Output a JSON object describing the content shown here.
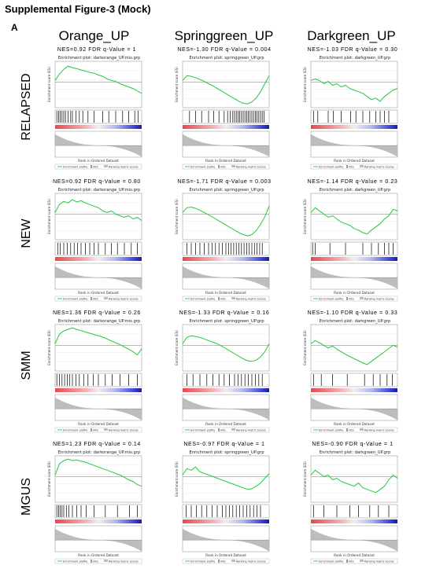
{
  "figure": {
    "title": "Supplemental Figure-3 (Mock)",
    "panel_label": "A",
    "columns": [
      "Orange_UP",
      "Springgreen_UP",
      "Darkgreen_UP"
    ],
    "rows": [
      "RELAPSED",
      "NEW",
      "SMM",
      "MGUS"
    ]
  },
  "chart_data": [
    {
      "type": "line",
      "row": "RELAPSED",
      "column": "Orange_UP",
      "stat": "NES=0.92  FDR q-Value = 1",
      "plot_title": "Enrichment plot: darkorange_UP.mis.grp",
      "xlabel": "Rank in Ordered Dataset",
      "ylabel": "Enrichment score (ES)",
      "legend": [
        "Enrichment profile",
        "Hits",
        "Ranking metric scores"
      ],
      "x": [
        0,
        0.05,
        0.1,
        0.15,
        0.2,
        0.25,
        0.3,
        0.35,
        0.4,
        0.45,
        0.5,
        0.55,
        0.6,
        0.65,
        0.7,
        0.75,
        0.8,
        0.85,
        0.9,
        0.95,
        1
      ],
      "es": [
        0.05,
        0.25,
        0.4,
        0.5,
        0.45,
        0.42,
        0.38,
        0.35,
        0.3,
        0.28,
        0.22,
        0.18,
        0.1,
        0.05,
        0.02,
        -0.05,
        -0.1,
        -0.15,
        -0.2,
        -0.28,
        -0.35
      ],
      "hits": [
        0.02,
        0.04,
        0.06,
        0.08,
        0.1,
        0.12,
        0.15,
        0.18,
        0.2,
        0.24,
        0.28,
        0.32,
        0.38,
        0.45,
        0.55,
        0.62,
        0.7,
        0.78,
        0.85,
        0.92,
        0.96
      ]
    },
    {
      "type": "line",
      "row": "RELAPSED",
      "column": "Springgreen_UP",
      "stat": "NES=-1.30  FDR q-Value = 0.004",
      "plot_title": "Enrichment plot: springgreen_UP.grp",
      "xlabel": "Rank in Ordered Dataset",
      "ylabel": "Enrichment score (ES)",
      "legend": [
        "Enrichment profile",
        "Hits",
        "Ranking metric scores"
      ],
      "x": [
        0,
        0.05,
        0.1,
        0.15,
        0.2,
        0.25,
        0.3,
        0.35,
        0.4,
        0.45,
        0.5,
        0.55,
        0.6,
        0.65,
        0.7,
        0.75,
        0.8,
        0.85,
        0.9,
        0.95,
        1
      ],
      "es": [
        0.05,
        0.2,
        0.18,
        0.14,
        0.08,
        0.02,
        -0.05,
        -0.12,
        -0.2,
        -0.28,
        -0.36,
        -0.44,
        -0.52,
        -0.6,
        -0.66,
        -0.68,
        -0.62,
        -0.5,
        -0.3,
        -0.05,
        0.2
      ],
      "hits": [
        0.08,
        0.15,
        0.22,
        0.3,
        0.36,
        0.42,
        0.48,
        0.52,
        0.55,
        0.58,
        0.6,
        0.62,
        0.64,
        0.66,
        0.68,
        0.7,
        0.72,
        0.74,
        0.76,
        0.78,
        0.8,
        0.82,
        0.84,
        0.86,
        0.88,
        0.9,
        0.92,
        0.94
      ]
    },
    {
      "type": "line",
      "row": "RELAPSED",
      "column": "Darkgreen_UP",
      "stat": "NES=-1.03  FDR q-Value = 0.30",
      "plot_title": "Enrichment plot: darkgreen_UP.grp",
      "xlabel": "Rank in Ordered Dataset",
      "ylabel": "Enrichment score (ES)",
      "legend": [
        "Enrichment profile",
        "Hits",
        "Ranking metric scores"
      ],
      "x": [
        0,
        0.05,
        0.1,
        0.15,
        0.2,
        0.25,
        0.3,
        0.35,
        0.4,
        0.45,
        0.5,
        0.55,
        0.6,
        0.65,
        0.7,
        0.75,
        0.8,
        0.85,
        0.9,
        0.95,
        1
      ],
      "es": [
        0.05,
        0.1,
        0.05,
        -0.05,
        0.02,
        -0.1,
        -0.05,
        -0.15,
        -0.1,
        -0.2,
        -0.25,
        -0.3,
        -0.35,
        -0.45,
        -0.55,
        -0.5,
        -0.6,
        -0.45,
        -0.35,
        -0.25,
        -0.2
      ],
      "hits": [
        0.03,
        0.08,
        0.2,
        0.26,
        0.35,
        0.46,
        0.52,
        0.6,
        0.68,
        0.75,
        0.8,
        0.85,
        0.9
      ]
    },
    {
      "type": "line",
      "row": "NEW",
      "column": "Orange_UP",
      "stat": "NES=0.92  FDR q-Value = 0.80",
      "plot_title": "Enrichment plot: darkorange_UP.mis.grp",
      "xlabel": "Rank in Ordered Dataset",
      "ylabel": "Enrichment score (ES)",
      "legend": [
        "Enrichment profile",
        "Hits",
        "Ranking metric scores"
      ],
      "x": [
        0,
        0.05,
        0.1,
        0.15,
        0.2,
        0.25,
        0.3,
        0.35,
        0.4,
        0.45,
        0.5,
        0.55,
        0.6,
        0.65,
        0.7,
        0.75,
        0.8,
        0.85,
        0.9,
        0.95,
        1
      ],
      "es": [
        0.05,
        0.3,
        0.4,
        0.35,
        0.45,
        0.38,
        0.42,
        0.35,
        0.3,
        0.25,
        0.2,
        0.1,
        0.05,
        0.1,
        0.0,
        -0.05,
        -0.1,
        -0.05,
        -0.15,
        -0.1,
        -0.2
      ],
      "hits": [
        0.03,
        0.06,
        0.1,
        0.14,
        0.18,
        0.22,
        0.26,
        0.3,
        0.35,
        0.4,
        0.45,
        0.5,
        0.58,
        0.65,
        0.72,
        0.8,
        0.88,
        0.95
      ]
    },
    {
      "type": "line",
      "row": "NEW",
      "column": "Springgreen_UP",
      "stat": "NES=-1.71  FDR q-Value = 0.003",
      "plot_title": "Enrichment plot: springgreen_UP.grp",
      "xlabel": "Rank in Ordered Dataset",
      "ylabel": "Enrichment score (ES)",
      "legend": [
        "Enrichment profile",
        "Hits",
        "Ranking metric scores"
      ],
      "x": [
        0,
        0.05,
        0.1,
        0.15,
        0.2,
        0.25,
        0.3,
        0.35,
        0.4,
        0.45,
        0.5,
        0.55,
        0.6,
        0.65,
        0.7,
        0.75,
        0.8,
        0.85,
        0.9,
        0.95,
        1
      ],
      "es": [
        0.05,
        0.2,
        0.22,
        0.18,
        0.12,
        0.05,
        -0.02,
        -0.1,
        -0.18,
        -0.26,
        -0.34,
        -0.42,
        -0.5,
        -0.58,
        -0.64,
        -0.68,
        -0.64,
        -0.52,
        -0.32,
        -0.08,
        0.25
      ],
      "hits": [
        0.05,
        0.1,
        0.15,
        0.2,
        0.25,
        0.3,
        0.34,
        0.38,
        0.42,
        0.46,
        0.5,
        0.53,
        0.56,
        0.59,
        0.62,
        0.65,
        0.68,
        0.71,
        0.74,
        0.77,
        0.8,
        0.83,
        0.86,
        0.89,
        0.92
      ]
    },
    {
      "type": "line",
      "row": "NEW",
      "column": "Darkgreen_UP",
      "stat": "NES=-1.14  FDR q-Value = 0.23",
      "plot_title": "Enrichment plot: darkgreen_UP.grp",
      "xlabel": "Rank in Ordered Dataset",
      "ylabel": "Enrichment score (ES)",
      "legend": [
        "Enrichment profile",
        "Hits",
        "Ranking metric scores"
      ],
      "x": [
        0,
        0.05,
        0.1,
        0.15,
        0.2,
        0.25,
        0.3,
        0.35,
        0.4,
        0.45,
        0.5,
        0.55,
        0.6,
        0.65,
        0.7,
        0.75,
        0.8,
        0.85,
        0.9,
        0.95,
        1
      ],
      "es": [
        0.05,
        0.2,
        0.1,
        0.0,
        -0.1,
        -0.05,
        -0.15,
        -0.25,
        -0.3,
        -0.35,
        -0.45,
        -0.5,
        -0.58,
        -0.62,
        -0.5,
        -0.4,
        -0.3,
        -0.15,
        -0.05,
        0.15,
        0.1
      ],
      "hits": [
        0.02,
        0.05,
        0.22,
        0.4,
        0.6,
        0.7,
        0.78,
        0.85,
        0.9,
        0.95
      ]
    },
    {
      "type": "line",
      "row": "SMM",
      "column": "Orange_UP",
      "stat": "NES=1.36  FDR q-Value = 0.26",
      "plot_title": "Enrichment plot: darkorange_UP.mis.grp",
      "xlabel": "Rank in Ordered Dataset",
      "ylabel": "Enrichment score (ES)",
      "legend": [
        "Enrichment profile",
        "Hits",
        "Ranking metric scores"
      ],
      "x": [
        0,
        0.05,
        0.1,
        0.15,
        0.2,
        0.25,
        0.3,
        0.35,
        0.4,
        0.45,
        0.5,
        0.55,
        0.6,
        0.65,
        0.7,
        0.75,
        0.8,
        0.85,
        0.9,
        0.95,
        1
      ],
      "es": [
        0.05,
        0.35,
        0.45,
        0.5,
        0.55,
        0.5,
        0.46,
        0.42,
        0.38,
        0.34,
        0.3,
        0.26,
        0.2,
        0.14,
        0.08,
        0.02,
        -0.05,
        -0.12,
        -0.2,
        -0.3,
        -0.1
      ],
      "hits": [
        0.02,
        0.05,
        0.08,
        0.11,
        0.14,
        0.17,
        0.2,
        0.24,
        0.28,
        0.33,
        0.38,
        0.44,
        0.5,
        0.58,
        0.66,
        0.75,
        0.85,
        0.95
      ]
    },
    {
      "type": "line",
      "row": "SMM",
      "column": "Springgreen_UP",
      "stat": "NES=-1.33  FDR q-Value = 0.16",
      "plot_title": "Enrichment plot: springgreen_UP.grp",
      "xlabel": "Rank in Ordered Dataset",
      "ylabel": "Enrichment score (ES)",
      "legend": [
        "Enrichment profile",
        "Hits",
        "Ranking metric scores"
      ],
      "x": [
        0,
        0.05,
        0.1,
        0.15,
        0.2,
        0.25,
        0.3,
        0.35,
        0.4,
        0.45,
        0.5,
        0.55,
        0.6,
        0.65,
        0.7,
        0.75,
        0.8,
        0.85,
        0.9,
        0.95,
        1
      ],
      "es": [
        0.05,
        0.25,
        0.3,
        0.28,
        0.25,
        0.2,
        0.15,
        0.1,
        0.05,
        -0.02,
        -0.1,
        -0.18,
        -0.26,
        -0.34,
        -0.42,
        -0.48,
        -0.5,
        -0.46,
        -0.36,
        -0.2,
        0.05
      ],
      "hits": [
        0.05,
        0.12,
        0.2,
        0.28,
        0.35,
        0.42,
        0.48,
        0.54,
        0.6,
        0.64,
        0.68,
        0.72,
        0.76,
        0.8,
        0.84,
        0.88,
        0.92
      ]
    },
    {
      "type": "line",
      "row": "SMM",
      "column": "Darkgreen_UP",
      "stat": "NES=-1.10  FDR q-Value = 0.33",
      "plot_title": "Enrichment plot: darkgreen_UP.grp",
      "xlabel": "Rank in Ordered Dataset",
      "ylabel": "Enrichment score (ES)",
      "legend": [
        "Enrichment profile",
        "Hits",
        "Ranking metric scores"
      ],
      "x": [
        0,
        0.05,
        0.1,
        0.15,
        0.2,
        0.25,
        0.3,
        0.35,
        0.4,
        0.45,
        0.5,
        0.55,
        0.6,
        0.65,
        0.7,
        0.75,
        0.8,
        0.85,
        0.9,
        0.95,
        1
      ],
      "es": [
        0.05,
        0.15,
        0.08,
        0.0,
        -0.08,
        -0.02,
        -0.12,
        -0.2,
        -0.28,
        -0.35,
        -0.42,
        -0.48,
        -0.55,
        -0.6,
        -0.5,
        -0.4,
        -0.3,
        -0.2,
        -0.1,
        0.0,
        -0.05
      ],
      "hits": [
        0.03,
        0.12,
        0.25,
        0.42,
        0.62,
        0.72,
        0.8,
        0.88,
        0.94
      ]
    },
    {
      "type": "line",
      "row": "MGUS",
      "column": "Orange_UP",
      "stat": "NES=1.23  FDR q-Value = 0.14",
      "plot_title": "Enrichment plot: darkorange_UP.mis.grp",
      "xlabel": "Rank in Ordered Dataset",
      "ylabel": "Enrichment score (ES)",
      "legend": [
        "Enrichment profile",
        "Hits",
        "Ranking metric scores"
      ],
      "x": [
        0,
        0.05,
        0.1,
        0.15,
        0.2,
        0.25,
        0.3,
        0.35,
        0.4,
        0.45,
        0.5,
        0.55,
        0.6,
        0.65,
        0.7,
        0.75,
        0.8,
        0.85,
        0.9,
        0.95,
        1
      ],
      "es": [
        0.05,
        0.4,
        0.5,
        0.55,
        0.5,
        0.52,
        0.48,
        0.45,
        0.4,
        0.35,
        0.3,
        0.25,
        0.2,
        0.15,
        0.1,
        0.05,
        -0.02,
        -0.1,
        -0.15,
        -0.25,
        -0.3
      ],
      "hits": [
        0.02,
        0.04,
        0.06,
        0.08,
        0.1,
        0.13,
        0.16,
        0.2,
        0.25,
        0.3,
        0.36,
        0.45,
        0.58,
        0.72,
        0.86,
        0.95
      ]
    },
    {
      "type": "line",
      "row": "MGUS",
      "column": "Springgreen_UP",
      "stat": "NES=-0.97  FDR q-Value = 1",
      "plot_title": "Enrichment plot: springgreen_UP.grp",
      "xlabel": "Rank in Ordered Dataset",
      "ylabel": "Enrichment score (ES)",
      "legend": [
        "Enrichment profile",
        "Hits",
        "Ranking metric scores"
      ],
      "x": [
        0,
        0.05,
        0.1,
        0.15,
        0.2,
        0.25,
        0.3,
        0.35,
        0.4,
        0.45,
        0.5,
        0.55,
        0.6,
        0.65,
        0.7,
        0.75,
        0.8,
        0.85,
        0.9,
        0.95,
        1
      ],
      "es": [
        0.05,
        0.25,
        0.2,
        0.3,
        0.15,
        0.1,
        0.05,
        0.0,
        -0.05,
        -0.1,
        -0.15,
        -0.2,
        -0.25,
        -0.3,
        -0.35,
        -0.4,
        -0.38,
        -0.3,
        -0.2,
        -0.05,
        0.1
      ],
      "hits": [
        0.04,
        0.1,
        0.16,
        0.22,
        0.28,
        0.34,
        0.4,
        0.46,
        0.5,
        0.54,
        0.58,
        0.62,
        0.66,
        0.7,
        0.74,
        0.78,
        0.82,
        0.86,
        0.9
      ]
    },
    {
      "type": "line",
      "row": "MGUS",
      "column": "Darkgreen_UP",
      "stat": "NES=-0.90  FDR q-Value = 1",
      "plot_title": "Enrichment plot: darkgreen_UP.grp",
      "xlabel": "Rank in Ordered Dataset",
      "ylabel": "Enrichment score (ES)",
      "legend": [
        "Enrichment profile",
        "Hits",
        "Ranking metric scores"
      ],
      "x": [
        0,
        0.05,
        0.1,
        0.15,
        0.2,
        0.25,
        0.3,
        0.35,
        0.4,
        0.45,
        0.5,
        0.55,
        0.6,
        0.65,
        0.7,
        0.75,
        0.8,
        0.85,
        0.9,
        0.95,
        1
      ],
      "es": [
        0.05,
        0.2,
        0.1,
        0.0,
        0.05,
        -0.1,
        -0.05,
        -0.15,
        -0.2,
        -0.25,
        -0.3,
        -0.2,
        -0.35,
        -0.4,
        -0.45,
        -0.5,
        -0.4,
        -0.3,
        -0.1,
        0.05,
        -0.05
      ],
      "hits": [
        0.03,
        0.15,
        0.3,
        0.45,
        0.55,
        0.68,
        0.78,
        0.9
      ]
    }
  ]
}
